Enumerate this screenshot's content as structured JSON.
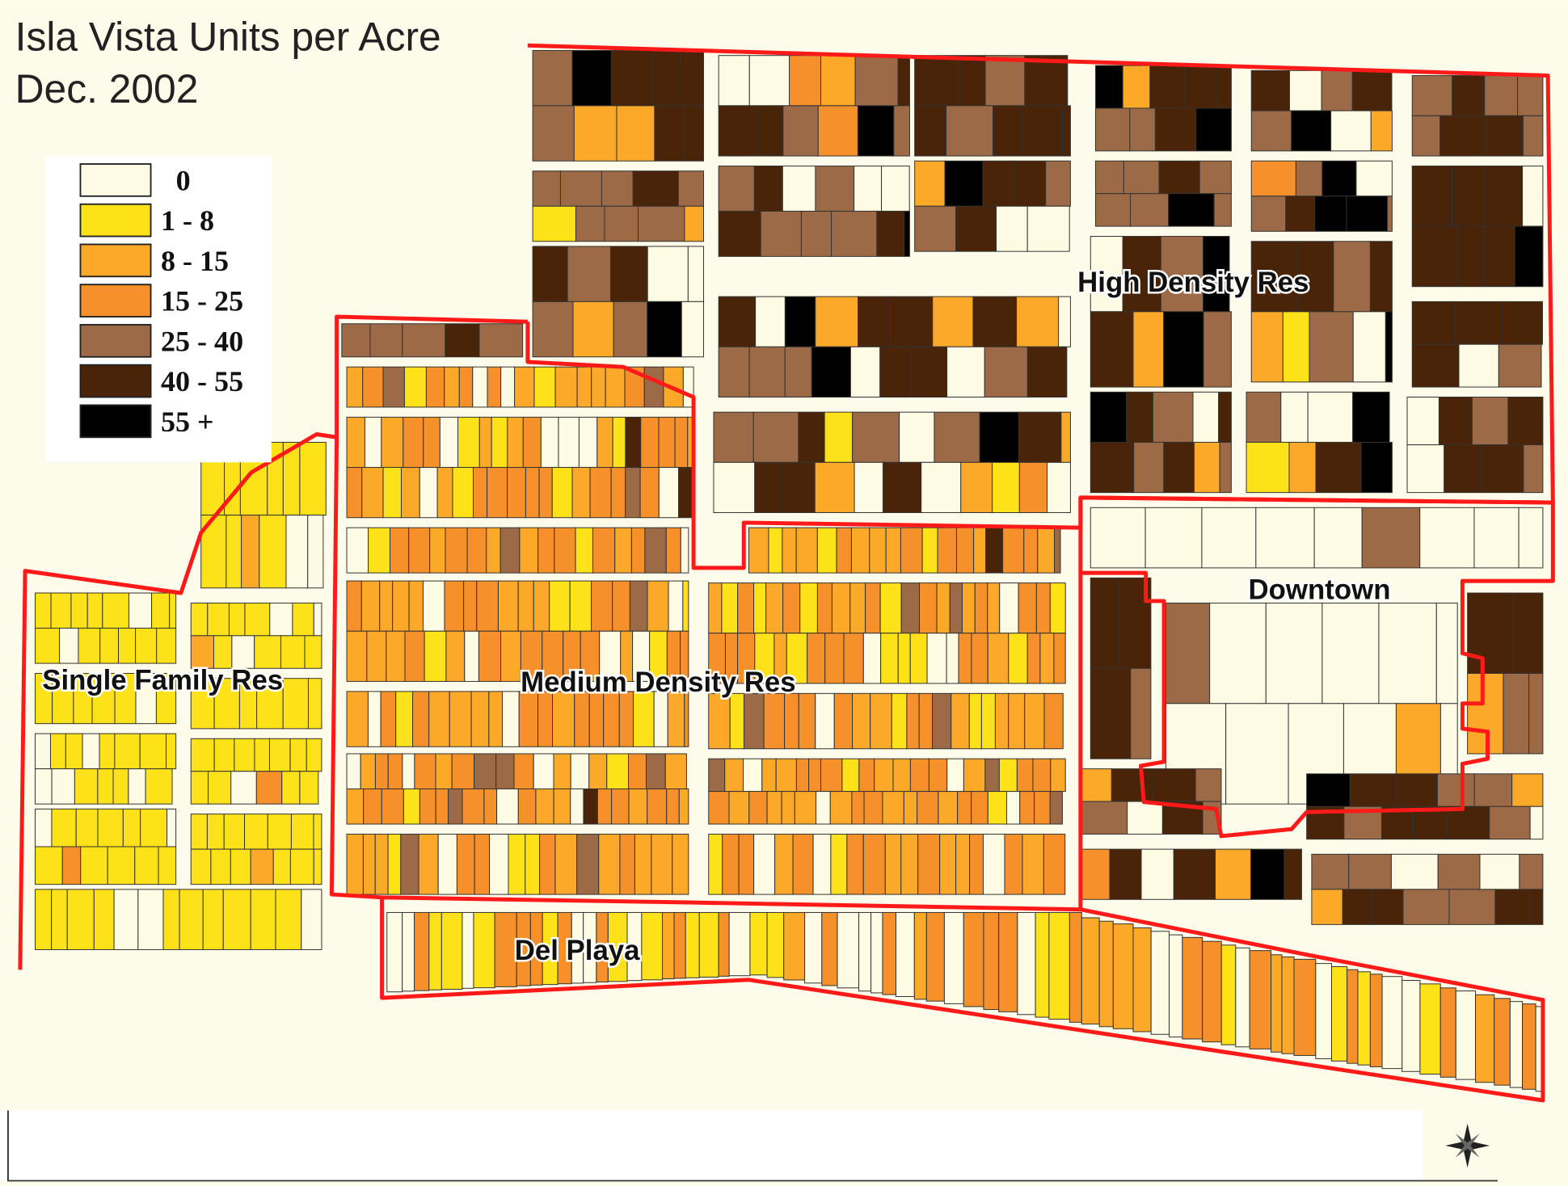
{
  "title": [
    "Isla Vista Units per Acre",
    "Dec. 2002"
  ],
  "legend": [
    {
      "label": "0",
      "color": "#fdfbe3"
    },
    {
      "label": "1 - 8",
      "color": "#fde21a"
    },
    {
      "label": "8 - 15",
      "color": "#fca92a"
    },
    {
      "label": "15 - 25",
      "color": "#f5902a"
    },
    {
      "label": "25 - 40",
      "color": "#9c6a46"
    },
    {
      "label": "40 - 55",
      "color": "#4a2408"
    },
    {
      "label": "55 +",
      "color": "#000000"
    }
  ],
  "zones": [
    "High Density Res",
    "Downtown",
    "Single Family Res",
    "Medium Density Res",
    "Del Playa"
  ],
  "boundary_color": "#ff1a1a"
}
